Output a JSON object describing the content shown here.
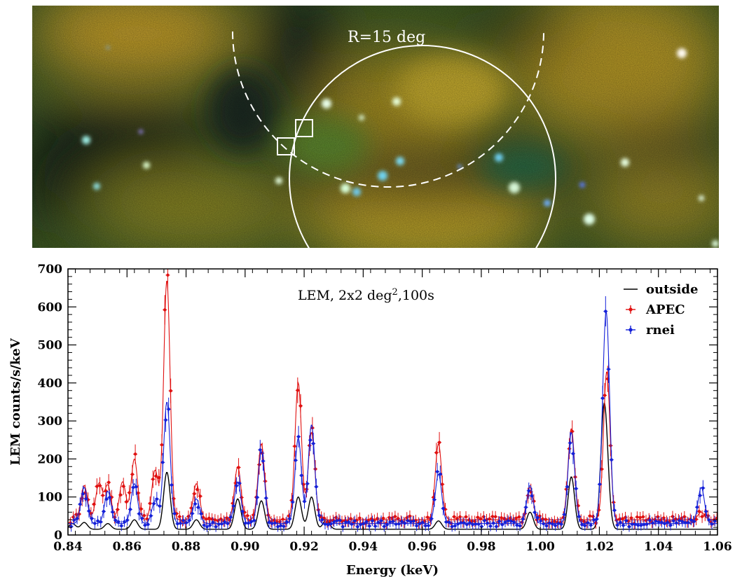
{
  "sky_image": {
    "circle_label": "R=15 deg",
    "colors": {
      "yellow": "#d8b62a",
      "green": "#3f7a2a",
      "dark": "#101a14",
      "cyan": "#6fd6e6"
    }
  },
  "chart_data": {
    "type": "line",
    "title": "",
    "annotation": "LEM, 2x2 deg",
    "annotation_sup": "2",
    "annotation_tail": ",100s",
    "xlabel": "Energy (keV)",
    "ylabel": "LEM  counts/s/keV",
    "xlim": [
      0.84,
      1.06
    ],
    "ylim": [
      0,
      700
    ],
    "x_ticks": [
      0.84,
      0.86,
      0.88,
      0.9,
      0.92,
      0.94,
      0.96,
      0.98,
      1.0,
      1.02,
      1.04,
      1.06
    ],
    "x_tick_labels": [
      "0.84",
      "0.86",
      "0.88",
      "0.90",
      "0.92",
      "0.94",
      "0.96",
      "0.98",
      "1.00",
      "1.02",
      "1.04",
      "1.06"
    ],
    "y_ticks": [
      0,
      100,
      200,
      300,
      400,
      500,
      600,
      700
    ],
    "y_tick_labels": [
      "0",
      "100",
      "200",
      "300",
      "400",
      "500",
      "600",
      "700"
    ],
    "legend_position": "top-right",
    "series": [
      {
        "name": "outside",
        "color": "#000000",
        "style": "line",
        "baseline": 15,
        "lines": [
          [
            0.8415,
            15
          ],
          [
            0.8455,
            18
          ],
          [
            0.8535,
            15
          ],
          [
            0.8625,
            25
          ],
          [
            0.8735,
            150
          ],
          [
            0.8835,
            25
          ],
          [
            0.8975,
            80
          ],
          [
            0.9055,
            75
          ],
          [
            0.918,
            85
          ],
          [
            0.9225,
            85
          ],
          [
            0.9275,
            25
          ],
          [
            0.9655,
            22
          ],
          [
            0.9965,
            45
          ],
          [
            1.0105,
            138
          ],
          [
            1.0215,
            275
          ],
          [
            1.0225,
            80
          ]
        ]
      },
      {
        "name": "APEC",
        "color": "#e01010",
        "style": "points",
        "baseline": 40,
        "lines": [
          [
            0.8455,
            90
          ],
          [
            0.8505,
            95
          ],
          [
            0.8535,
            90
          ],
          [
            0.8585,
            100
          ],
          [
            0.8625,
            160
          ],
          [
            0.8695,
            130
          ],
          [
            0.8735,
            630
          ],
          [
            0.8835,
            95
          ],
          [
            0.8975,
            140
          ],
          [
            0.9055,
            200
          ],
          [
            0.918,
            360
          ],
          [
            0.9225,
            230
          ],
          [
            0.9655,
            200
          ],
          [
            0.9965,
            85
          ],
          [
            1.0105,
            240
          ],
          [
            1.0225,
            390
          ],
          [
            1.0545,
            20
          ]
        ]
      },
      {
        "name": "rnei",
        "color": "#1420d8",
        "style": "points",
        "baseline": 30,
        "lines": [
          [
            0.8455,
            95
          ],
          [
            0.8535,
            85
          ],
          [
            0.8625,
            105
          ],
          [
            0.8695,
            60
          ],
          [
            0.8735,
            320
          ],
          [
            0.8835,
            65
          ],
          [
            0.8975,
            110
          ],
          [
            0.9055,
            190
          ],
          [
            0.918,
            225
          ],
          [
            0.9225,
            260
          ],
          [
            0.9655,
            130
          ],
          [
            0.9965,
            100
          ],
          [
            1.0105,
            240
          ],
          [
            1.0215,
            150
          ],
          [
            1.0225,
            450
          ],
          [
            1.0545,
            95
          ]
        ]
      }
    ]
  }
}
